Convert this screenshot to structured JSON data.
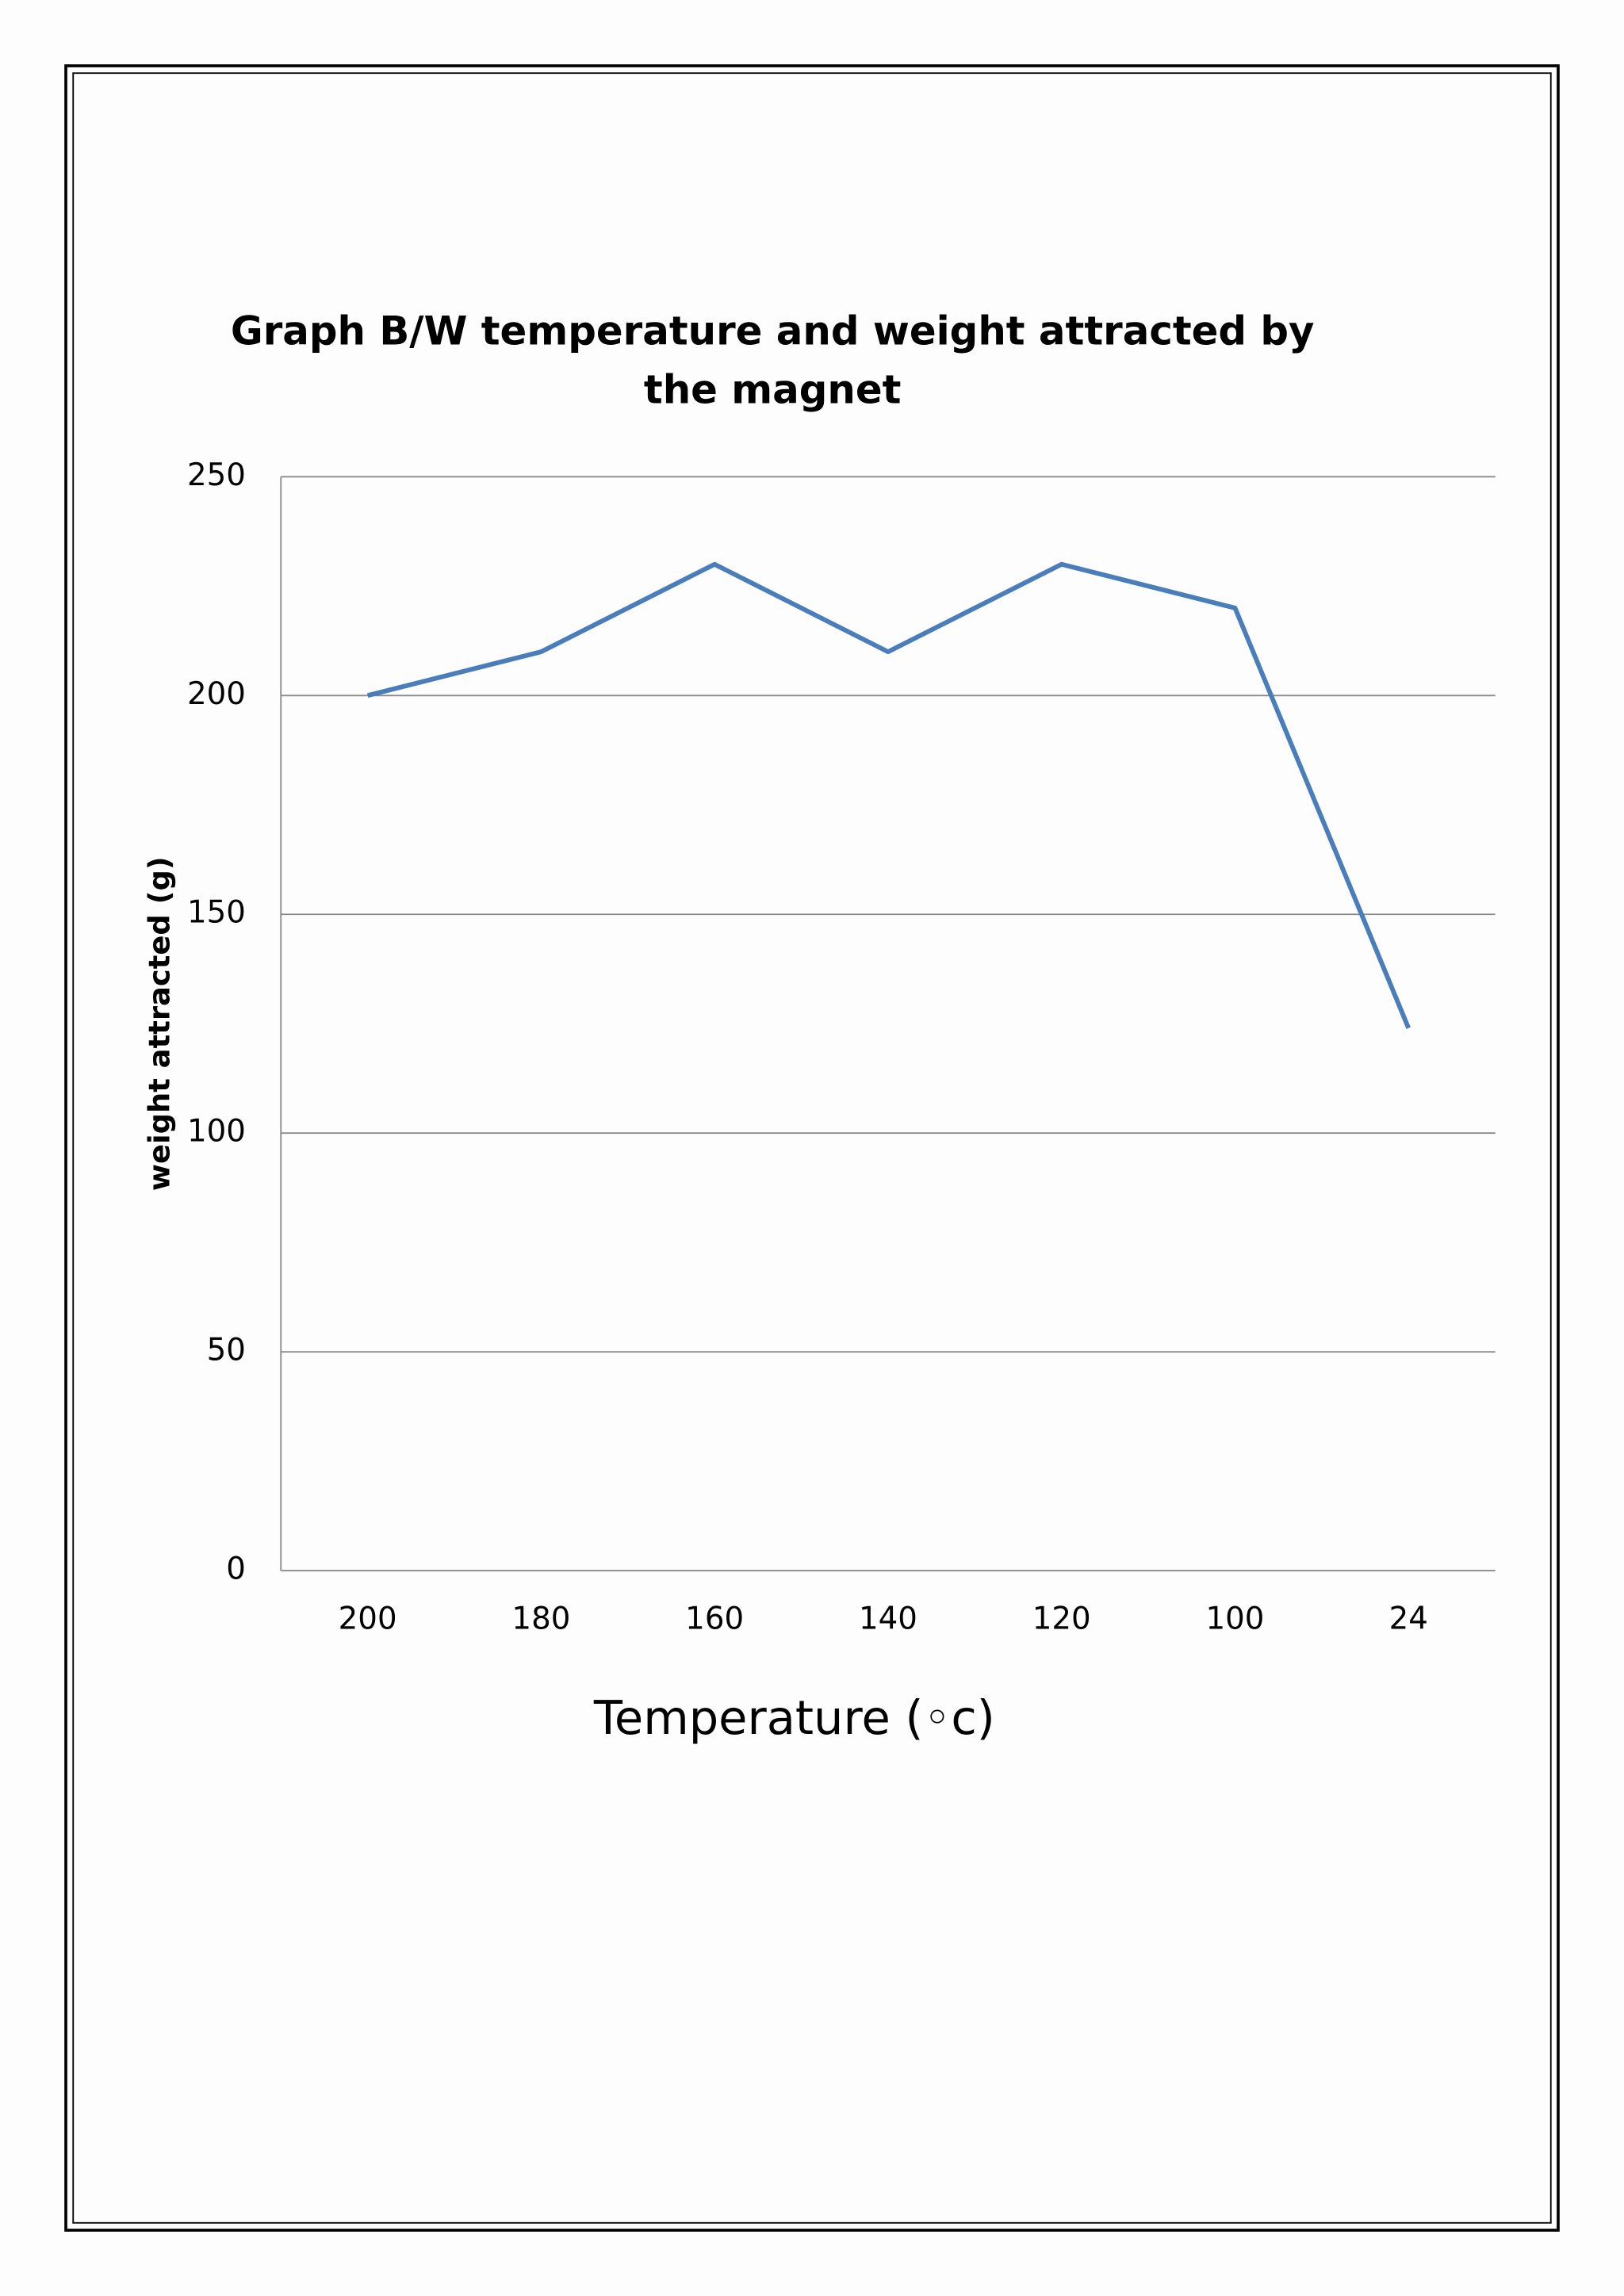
{
  "chart_data": {
    "type": "line",
    "title": "Graph B/W temperature and weight attracted by the magnet",
    "x_label": "Temperature (◦c)",
    "y_label": "weight  attracted (g)",
    "categories": [
      "200",
      "180",
      "160",
      "140",
      "120",
      "100",
      "24"
    ],
    "series": [
      {
        "name": "weight attracted",
        "color": "#4a7ebb",
        "values": [
          200,
          210,
          230,
          210,
          230,
          220,
          124
        ]
      }
    ],
    "ylim": [
      0,
      250
    ],
    "yticks": [
      0,
      50,
      100,
      150,
      200,
      250
    ],
    "grid": true
  }
}
